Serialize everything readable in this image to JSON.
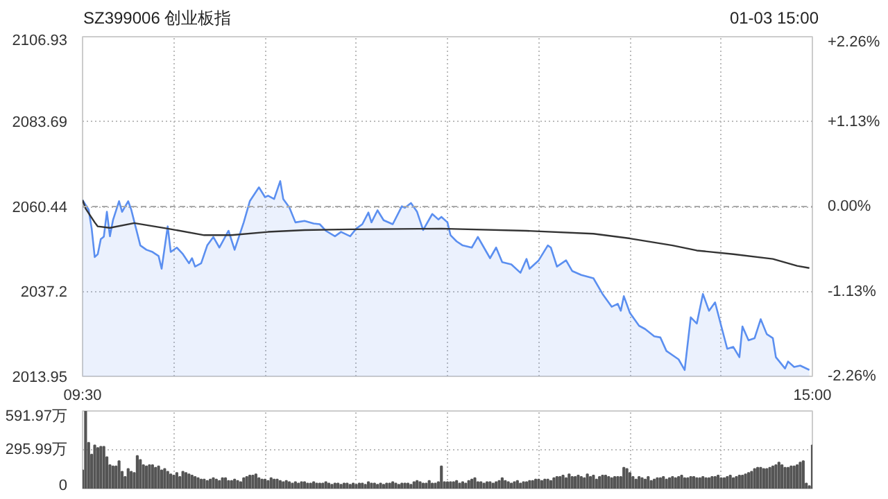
{
  "chart_data": [
    {
      "type": "area",
      "title": "SZ399006 创业板指",
      "subtitle": "01-03 15:00",
      "grid": true,
      "categories": [
        "09:30",
        null,
        null,
        null,
        null,
        null,
        null,
        null,
        null,
        null,
        null,
        null,
        null,
        null,
        null,
        null,
        null,
        null,
        null,
        null,
        null,
        null,
        null,
        null,
        null,
        null,
        null,
        null,
        null,
        null,
        null,
        null,
        null,
        null,
        null,
        null,
        null,
        null,
        null,
        null,
        null,
        null,
        null,
        null,
        null,
        null,
        null,
        null,
        null,
        null,
        null,
        null,
        null,
        null,
        null,
        null,
        null,
        null,
        null,
        null,
        null,
        null,
        null,
        null,
        null,
        null,
        null,
        null,
        null,
        null,
        null,
        null,
        null,
        null,
        null,
        null,
        null,
        null,
        null,
        null,
        null,
        null,
        null,
        null,
        null,
        null,
        null,
        null,
        null,
        null,
        null,
        null,
        null,
        null,
        null,
        null,
        null,
        null,
        null,
        null,
        null,
        null,
        null,
        null,
        null,
        null,
        null,
        null,
        null,
        null,
        null,
        null,
        null,
        null,
        null,
        null,
        null,
        null,
        null,
        null,
        null,
        null,
        null,
        null,
        null,
        null,
        null,
        null,
        null,
        null,
        null,
        null,
        null,
        null,
        null,
        null,
        null,
        null,
        null,
        null,
        null,
        null,
        null,
        null,
        null,
        null,
        null,
        null,
        null,
        null,
        null,
        null,
        null,
        null,
        null,
        null,
        null,
        null,
        null,
        null,
        null,
        null,
        null,
        null,
        null,
        null,
        null,
        null,
        null,
        null,
        null,
        null,
        null,
        null,
        null,
        null,
        null,
        null,
        null,
        null,
        null,
        null,
        null,
        null,
        null,
        null,
        null,
        null,
        null,
        null,
        null,
        null,
        null,
        null,
        null,
        null,
        null,
        null,
        null,
        null,
        null,
        null,
        null,
        null,
        null,
        null,
        null,
        null,
        null,
        null,
        null,
        null,
        null,
        null,
        null,
        null,
        null,
        null,
        null,
        null,
        null,
        null,
        null,
        null,
        null,
        null,
        null,
        null,
        null,
        null,
        null,
        null,
        null,
        null,
        null,
        null,
        null,
        null,
        null,
        null,
        "15:00"
      ],
      "ylim": [
        2013.95,
        2106.93
      ],
      "yticks": [
        2013.95,
        2037.2,
        2060.44,
        2083.69,
        2106.93
      ],
      "y2lim": [
        -2.26,
        2.26
      ],
      "y2ticks": [
        {
          "value": -2.26,
          "label": "-2.26%"
        },
        {
          "value": -1.13,
          "label": "-1.13%"
        },
        {
          "value": 0,
          "label": "0.00%"
        },
        {
          "value": 1.13,
          "label": "+1.13%"
        },
        {
          "value": 2.26,
          "label": "+2.26%"
        }
      ],
      "ref_lines": [
        {
          "axis": "y",
          "value": 2060.44,
          "color": "#aaaaaa",
          "line_style": "dashed"
        }
      ],
      "series": [
        {
          "type": "area",
          "color": "#5b8ff0",
          "values": [
            2062.2,
            null,
            2059.6,
            2054.4,
            2046.6,
            2047.4,
            2051.5,
            2052.2,
            2059.0,
            2052.3,
            2056.7,
            null,
            2061.9,
            2059.0,
            null,
            2061.9,
            2059.6,
            null,
            null,
            2049.8,
            null,
            2048.6,
            null,
            2048.0,
            null,
            2046.9,
            2043.4,
            null,
            2055.0,
            2048.0,
            null,
            2049.2,
            null,
            2047.4,
            null,
            2044.9,
            2046.3,
            2044.0,
            null,
            2044.9,
            null,
            2049.8,
            null,
            2052.1,
            null,
            2049.2,
            null,
            null,
            2053.8,
            null,
            2048.6,
            null,
            null,
            2056.1,
            null,
            2061.9,
            null,
            null,
            2065.7,
            null,
            2063.0,
            2063.4,
            null,
            2062.5,
            null,
            2067.4,
            2062.5,
            null,
            2060.2,
            null,
            2056.1,
            null,
            null,
            2056.5,
            null,
            null,
            2055.8,
            null,
            2055.6,
            null,
            2053.8,
            null,
            null,
            2052.3,
            null,
            2053.5,
            null,
            null,
            2052.3,
            null,
            2054.4,
            null,
            2055.6,
            null,
            2058.8,
            2056.1,
            null,
            2059.4,
            null,
            2056.7,
            null,
            null,
            2055.6,
            null,
            null,
            2060.5,
            2060.1,
            null,
            2061.4,
            null,
            2059.0,
            null,
            2054.0,
            null,
            null,
            2058.4,
            null,
            2056.9,
            2057.6,
            null,
            2056.1,
            2052.6,
            null,
            2050.9,
            null,
            2049.8,
            null,
            null,
            2049.2,
            null,
            2052.1,
            null,
            2049.2,
            null,
            2046.3,
            null,
            2049.2,
            null,
            2045.2,
            null,
            null,
            2044.6,
            null,
            null,
            2042.3,
            null,
            2046.1,
            2043.4,
            null,
            null,
            2045.7,
            null,
            null,
            2049.8,
            2049.2,
            null,
            2044.0,
            null,
            null,
            2045.7,
            null,
            2042.8,
            null,
            null,
            2041.7,
            null,
            null,
            null,
            2040.8,
            null,
            null,
            2036.5,
            null,
            null,
            2033.0,
            null,
            2033.8,
            2031.9,
            2035.9,
            null,
            2031.3,
            null,
            null,
            2027.8,
            null,
            2026.9,
            null,
            null,
            2024.9,
            null,
            2024.6,
            null,
            2020.9,
            null,
            null,
            null,
            2018.6,
            null,
            2015.7,
            null,
            2030.1,
            null,
            2028.4,
            null,
            2036.5,
            null,
            2031.9,
            null,
            2034.2,
            null,
            2027.8,
            null,
            2021.5,
            null,
            2022.0,
            null,
            2019.2,
            2027.6,
            null,
            2023.8,
            null,
            2024.4,
            null,
            2029.6,
            null,
            2025.5,
            null,
            2024.4,
            2019.2,
            null,
            null,
            2016.1,
            2018.0,
            null,
            2016.5,
            null,
            2016.9,
            null,
            null,
            2015.7,
            null
          ]
        },
        {
          "type": "line",
          "color": "#333333",
          "values": [
            2062.2,
            2059.9,
            null,
            null,
            2056.1,
            2055.0,
            null,
            null,
            null,
            2054.6,
            null,
            null,
            null,
            null,
            null,
            null,
            null,
            2055.9,
            null,
            null,
            null,
            null,
            null,
            null,
            null,
            null,
            null,
            null,
            2054.4,
            null,
            null,
            null,
            null,
            null,
            null,
            null,
            null,
            null,
            null,
            null,
            2052.6,
            null,
            null,
            null,
            null,
            null,
            null,
            null,
            null,
            2052.6,
            null,
            null,
            null,
            null,
            null,
            null,
            null,
            null,
            null,
            null,
            null,
            2053.5,
            null,
            null,
            null,
            null,
            null,
            null,
            null,
            null,
            null,
            null,
            null,
            2054.0,
            null,
            null,
            null,
            null,
            null,
            null,
            null,
            null,
            null,
            null,
            null,
            null,
            null,
            null,
            2054.2,
            null,
            null,
            null,
            null,
            null,
            null,
            null,
            null,
            null,
            null,
            null,
            null,
            null,
            null,
            null,
            null,
            null,
            null,
            null,
            null,
            null,
            null,
            null,
            null,
            null,
            null,
            null,
            null,
            null,
            2054.4,
            null,
            null,
            null,
            null,
            null,
            null,
            null,
            null,
            null,
            null,
            null,
            null,
            null,
            null,
            null,
            null,
            null,
            null,
            null,
            null,
            null,
            null,
            null,
            null,
            null,
            null,
            null,
            2053.8,
            null,
            null,
            null,
            null,
            null,
            null,
            null,
            null,
            null,
            null,
            null,
            null,
            null,
            null,
            null,
            null,
            null,
            null,
            null,
            null,
            null,
            2053.0,
            null,
            null,
            null,
            null,
            null,
            null,
            null,
            null,
            null,
            null,
            null,
            2051.7,
            null,
            null,
            null,
            null,
            null,
            null,
            null,
            null,
            null,
            null,
            null,
            null,
            null,
            2049.8,
            null,
            null,
            null,
            null,
            null,
            null,
            null,
            2048.4,
            null,
            null,
            null,
            null,
            null,
            null,
            null,
            null,
            null,
            null,
            null,
            2047.4,
            null,
            null,
            null,
            null,
            null,
            null,
            null,
            null,
            null,
            null,
            null,
            null,
            2046.1,
            null,
            null,
            null,
            null,
            null,
            null,
            null,
            2044.2,
            null,
            null,
            null,
            2043.6,
            null
          ]
        }
      ]
    },
    {
      "type": "bar",
      "color": "#555555",
      "grid": true,
      "tick_labels": "y",
      "categories": [
        null,
        null,
        null,
        null,
        null,
        null,
        null,
        null,
        null,
        null,
        null,
        null,
        null,
        null,
        null,
        null,
        null,
        null,
        null,
        null,
        null,
        null,
        null,
        null,
        null,
        null,
        null,
        null,
        null,
        null,
        null,
        null,
        null,
        null,
        null,
        null,
        null,
        null,
        null,
        null,
        null,
        null,
        null,
        null,
        null,
        null,
        null,
        null,
        null,
        null,
        null,
        null,
        null,
        null,
        null,
        null,
        null,
        null,
        null,
        null,
        null,
        null,
        null,
        null,
        null,
        null,
        null,
        null,
        null,
        null,
        null,
        null,
        null,
        null,
        null,
        null,
        null,
        null,
        null,
        null,
        null,
        null,
        null,
        null,
        null,
        null,
        null,
        null,
        null,
        null,
        null,
        null,
        null,
        null,
        null,
        null,
        null,
        null,
        null,
        null,
        null,
        null,
        null,
        null,
        null,
        null,
        null,
        null,
        null,
        null,
        null,
        null,
        null,
        null,
        null,
        null,
        null,
        null,
        null,
        null,
        null,
        null,
        null,
        null,
        null,
        null,
        null,
        null,
        null,
        null,
        null,
        null,
        null,
        null,
        null,
        null,
        null,
        null,
        null,
        null,
        null,
        null,
        null,
        null,
        null,
        null,
        null,
        null,
        null,
        null,
        null,
        null,
        null,
        null,
        null,
        null,
        null,
        null,
        null,
        null,
        null,
        null,
        null,
        null,
        null,
        null,
        null,
        null,
        null,
        null,
        null,
        null,
        null,
        null,
        null,
        null,
        null,
        null,
        null,
        null,
        null,
        null,
        null,
        null,
        null,
        null,
        null,
        null,
        null,
        null,
        null,
        null,
        null,
        null,
        null,
        null,
        null,
        null,
        null,
        null,
        null,
        null,
        null,
        null,
        null,
        null,
        null,
        null,
        null,
        null,
        null,
        null,
        null,
        null,
        null,
        null,
        null,
        null,
        null,
        null,
        null,
        null,
        null,
        null,
        null,
        null,
        null,
        null,
        null,
        null,
        null,
        null,
        null,
        null,
        null,
        null,
        null,
        null,
        null,
        null,
        null
      ],
      "ylim": [
        0,
        591.97
      ],
      "yticks": [
        {
          "value": 0,
          "label": "0"
        },
        {
          "value": 295.99,
          "label": "295.99万"
        },
        {
          "value": 591.97,
          "label": "591.97万"
        }
      ],
      "values": [
        140,
        590,
        350,
        260,
        330,
        310,
        320,
        320,
        240,
        180,
        170,
        170,
        210,
        130,
        90,
        150,
        130,
        120,
        250,
        220,
        180,
        170,
        180,
        180,
        160,
        170,
        140,
        150,
        130,
        110,
        100,
        120,
        90,
        130,
        120,
        110,
        100,
        90,
        80,
        70,
        70,
        60,
        70,
        80,
        70,
        60,
        80,
        80,
        60,
        60,
        70,
        60,
        50,
        80,
        90,
        100,
        100,
        110,
        80,
        70,
        70,
        60,
        80,
        70,
        70,
        60,
        50,
        60,
        50,
        40,
        50,
        40,
        50,
        50,
        40,
        40,
        50,
        40,
        40,
        40,
        50,
        40,
        30,
        40,
        40,
        30,
        40,
        40,
        30,
        40,
        30,
        40,
        40,
        30,
        50,
        40,
        40,
        30,
        40,
        30,
        40,
        40,
        50,
        40,
        30,
        40,
        40,
        40,
        30,
        50,
        60,
        50,
        40,
        40,
        60,
        40,
        40,
        50,
        170,
        50,
        50,
        50,
        50,
        60,
        40,
        50,
        40,
        60,
        70,
        80,
        50,
        50,
        40,
        50,
        50,
        40,
        50,
        60,
        80,
        60,
        50,
        40,
        50,
        60,
        40,
        50,
        50,
        60,
        60,
        70,
        70,
        60,
        70,
        70,
        60,
        80,
        90,
        90,
        100,
        80,
        110,
        90,
        90,
        100,
        90,
        80,
        110,
        90,
        100,
        70,
        90,
        100,
        100,
        90,
        80,
        90,
        90,
        90,
        160,
        150,
        120,
        90,
        70,
        90,
        80,
        70,
        90,
        60,
        70,
        80,
        80,
        90,
        70,
        80,
        90,
        80,
        90,
        100,
        80,
        80,
        90,
        90,
        80,
        80,
        90,
        80,
        80,
        90,
        90,
        100,
        80,
        80,
        90,
        100,
        80,
        90,
        100,
        100,
        110,
        120,
        130,
        150,
        160,
        160,
        150,
        150,
        160,
        170,
        180,
        200,
        180,
        160,
        160,
        170,
        170,
        180,
        200,
        210,
        40,
        20,
        330
      ]
    }
  ]
}
